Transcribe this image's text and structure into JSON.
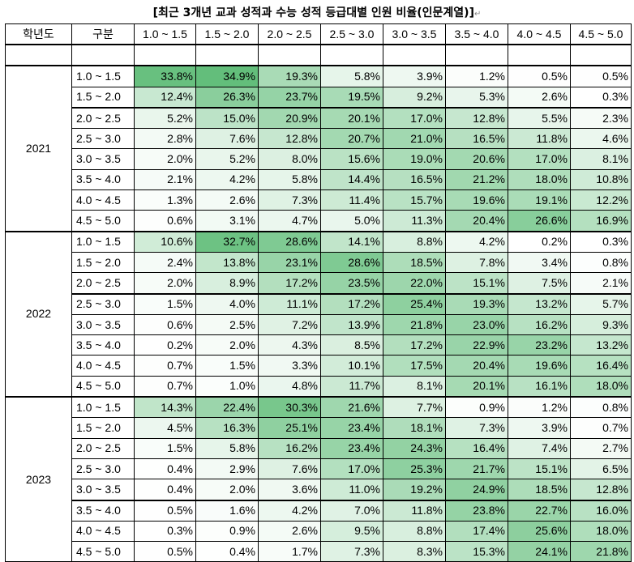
{
  "title": "[최근 3개년 교과 성적과 수능 성적 등급대별 인원 비율(인문계열)]",
  "title_mark": "↵",
  "header": [
    "학년도",
    "구분",
    "1.0 ~ 1.5",
    "1.5 ~ 2.0",
    "2.0 ~ 2.5",
    "2.5 ~ 3.0",
    "3.0 ~ 3.5",
    "3.5 ~ 4.0",
    "4.0 ~ 4.5",
    "4.5 ~ 5.0"
  ],
  "colors": {
    "max": "#63be7b",
    "min": "#ffffff"
  },
  "years": [
    {
      "year": "2021",
      "rows": [
        {
          "range": "1.0 ~ 1.5",
          "values": [
            "33.8%",
            "34.9%",
            "19.3%",
            "5.8%",
            "3.9%",
            "1.2%",
            "0.5%",
            "0.5%"
          ]
        },
        {
          "range": "1.5 ~ 2.0",
          "values": [
            "12.4%",
            "26.3%",
            "23.7%",
            "19.5%",
            "9.2%",
            "5.3%",
            "2.6%",
            "0.3%"
          ]
        },
        {
          "range": "2.0 ~ 2.5",
          "values": [
            "5.2%",
            "15.0%",
            "20.9%",
            "20.1%",
            "17.0%",
            "12.8%",
            "5.5%",
            "2.3%"
          ]
        },
        {
          "range": "2.5 ~ 3.0",
          "values": [
            "2.8%",
            "7.6%",
            "12.8%",
            "20.7%",
            "21.0%",
            "16.5%",
            "11.8%",
            "4.6%"
          ]
        },
        {
          "range": "3.0 ~ 3.5",
          "values": [
            "2.0%",
            "5.2%",
            "8.0%",
            "15.6%",
            "19.0%",
            "20.6%",
            "17.0%",
            "8.1%"
          ]
        },
        {
          "range": "3.5 ~ 4.0",
          "values": [
            "2.1%",
            "4.2%",
            "5.8%",
            "14.4%",
            "16.5%",
            "21.2%",
            "18.0%",
            "10.8%"
          ]
        },
        {
          "range": "4.0 ~ 4.5",
          "values": [
            "1.3%",
            "2.6%",
            "7.3%",
            "11.4%",
            "15.7%",
            "19.6%",
            "19.1%",
            "12.2%"
          ]
        },
        {
          "range": "4.5 ~ 5.0",
          "values": [
            "0.6%",
            "3.1%",
            "4.7%",
            "5.0%",
            "11.3%",
            "20.4%",
            "26.6%",
            "16.9%"
          ]
        }
      ]
    },
    {
      "year": "2022",
      "rows": [
        {
          "range": "1.0 ~ 1.5",
          "values": [
            "10.6%",
            "32.7%",
            "28.6%",
            "14.1%",
            "8.8%",
            "4.2%",
            "0.2%",
            "0.3%"
          ]
        },
        {
          "range": "1.5 ~ 2.0",
          "values": [
            "2.4%",
            "13.8%",
            "23.1%",
            "28.6%",
            "18.5%",
            "7.8%",
            "3.4%",
            "0.8%"
          ]
        },
        {
          "range": "2.0 ~ 2.5",
          "values": [
            "2.0%",
            "8.9%",
            "17.2%",
            "23.5%",
            "22.0%",
            "15.1%",
            "7.5%",
            "2.1%"
          ]
        },
        {
          "range": "2.5 ~ 3.0",
          "values": [
            "1.5%",
            "4.0%",
            "11.1%",
            "17.2%",
            "25.4%",
            "19.3%",
            "13.2%",
            "5.7%"
          ]
        },
        {
          "range": "3.0 ~ 3.5",
          "values": [
            "0.6%",
            "2.5%",
            "7.2%",
            "13.9%",
            "21.8%",
            "23.0%",
            "16.2%",
            "9.3%"
          ]
        },
        {
          "range": "3.5 ~ 4.0",
          "values": [
            "0.2%",
            "2.0%",
            "4.3%",
            "8.5%",
            "17.2%",
            "22.9%",
            "23.2%",
            "13.2%"
          ]
        },
        {
          "range": "4.0 ~ 4.5",
          "values": [
            "0.7%",
            "1.5%",
            "3.3%",
            "10.1%",
            "17.5%",
            "20.4%",
            "19.6%",
            "16.4%"
          ]
        },
        {
          "range": "4.5 ~ 5.0",
          "values": [
            "0.7%",
            "1.0%",
            "4.8%",
            "11.7%",
            "8.1%",
            "20.1%",
            "16.1%",
            "18.0%"
          ]
        }
      ]
    },
    {
      "year": "2023",
      "rows": [
        {
          "range": "1.0 ~ 1.5",
          "values": [
            "14.3%",
            "22.4%",
            "30.3%",
            "21.6%",
            "7.7%",
            "0.9%",
            "1.2%",
            "0.8%"
          ]
        },
        {
          "range": "1.5 ~ 2.0",
          "values": [
            "4.5%",
            "16.3%",
            "25.1%",
            "23.4%",
            "18.1%",
            "7.3%",
            "3.9%",
            "0.7%"
          ]
        },
        {
          "range": "2.0 ~ 2.5",
          "values": [
            "1.5%",
            "5.8%",
            "16.2%",
            "23.4%",
            "24.3%",
            "16.4%",
            "7.4%",
            "2.7%"
          ]
        },
        {
          "range": "2.5 ~ 3.0",
          "values": [
            "0.4%",
            "2.9%",
            "7.6%",
            "17.0%",
            "25.3%",
            "21.7%",
            "15.1%",
            "6.5%"
          ]
        },
        {
          "range": "3.0 ~ 3.5",
          "values": [
            "0.4%",
            "2.0%",
            "3.6%",
            "11.0%",
            "19.2%",
            "24.9%",
            "18.5%",
            "12.8%"
          ]
        },
        {
          "range": "3.5 ~ 4.0",
          "values": [
            "0.5%",
            "1.6%",
            "4.2%",
            "7.0%",
            "11.8%",
            "23.8%",
            "22.7%",
            "16.0%"
          ]
        },
        {
          "range": "4.0 ~ 4.5",
          "values": [
            "0.3%",
            "0.9%",
            "2.6%",
            "9.5%",
            "8.8%",
            "17.4%",
            "25.6%",
            "18.0%"
          ]
        },
        {
          "range": "4.5 ~ 5.0",
          "values": [
            "0.5%",
            "0.4%",
            "1.7%",
            "7.3%",
            "8.3%",
            "15.3%",
            "24.1%",
            "21.8%"
          ]
        }
      ]
    }
  ]
}
